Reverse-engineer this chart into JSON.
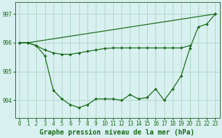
{
  "background_color": "#d8f0f0",
  "plot_bg_color": "#d8f0f0",
  "grid_color": "#b0d8c8",
  "line_color": "#1a6b1a",
  "marker_color": "#1a6b1a",
  "xlabel": "Graphe pression niveau de la mer (hPa)",
  "yticks": [
    994,
    995,
    996,
    997
  ],
  "xticks": [
    0,
    1,
    2,
    3,
    4,
    5,
    6,
    7,
    8,
    9,
    10,
    11,
    12,
    13,
    14,
    15,
    16,
    17,
    18,
    19,
    20,
    21,
    22,
    23
  ],
  "xlim": [
    -0.5,
    23.5
  ],
  "ylim": [
    993.4,
    997.4
  ],
  "line1_x": [
    0,
    1,
    2,
    3,
    4,
    5,
    6,
    7,
    8,
    9,
    10,
    11,
    12,
    13,
    14,
    15,
    16,
    17,
    18,
    19,
    20,
    21,
    22,
    23
  ],
  "line1_y": [
    996.0,
    996.0,
    995.9,
    995.55,
    994.35,
    994.05,
    993.85,
    993.75,
    993.85,
    994.05,
    994.05,
    994.05,
    994.0,
    994.2,
    994.05,
    994.1,
    994.4,
    994.0,
    994.4,
    994.85,
    995.8,
    996.55,
    996.65,
    997.0
  ],
  "line2_x": [
    0,
    1,
    2,
    3,
    4,
    5,
    6,
    7,
    8,
    9,
    10,
    11,
    12,
    13,
    14,
    15,
    16,
    17,
    18,
    19,
    20
  ],
  "line2_y": [
    996.0,
    996.0,
    995.9,
    995.75,
    995.65,
    995.6,
    995.6,
    995.65,
    995.7,
    995.75,
    995.8,
    995.82,
    995.82,
    995.82,
    995.82,
    995.82,
    995.82,
    995.82,
    995.82,
    995.82,
    995.9
  ],
  "line3_x": [
    0,
    1,
    23
  ],
  "line3_y": [
    996.0,
    996.0,
    997.0
  ],
  "markersize": 2.0,
  "linewidth": 0.9,
  "xlabel_fontsize": 7,
  "tick_fontsize": 5.5
}
